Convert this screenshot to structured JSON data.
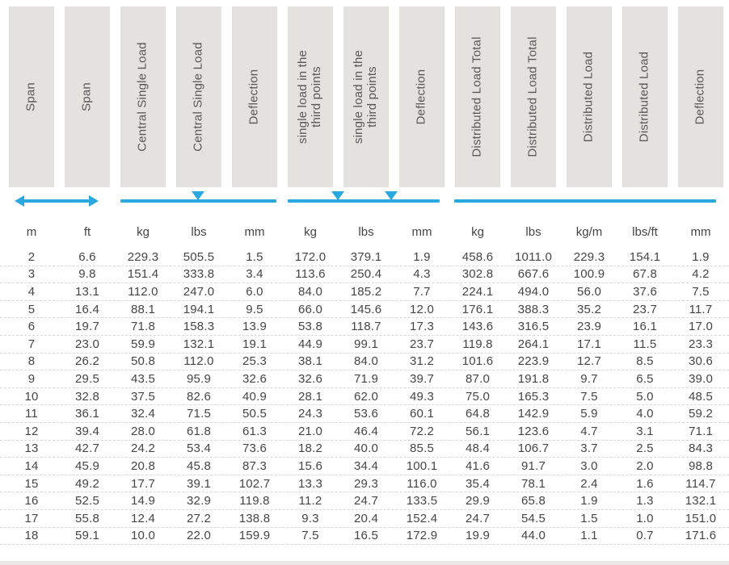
{
  "colors": {
    "header_box_bg": "#e3e2df",
    "header_text": "#58585a",
    "data_text": "#454547",
    "accent_blue": "#2aa9e0",
    "row_divider": "#d8d7d4"
  },
  "annotations": {
    "span_arrow": "double-headed horizontal arrow under Span columns",
    "central_load_line": "line with one center triangle under Central Single Load group",
    "third_points_line": "line with two triangles under third-points load group",
    "distributed_line": "plain line under Distributed Load group"
  },
  "table": {
    "columns": [
      {
        "id": "span-m",
        "label": "Span"
      },
      {
        "id": "span-ft",
        "label": "Span"
      },
      {
        "id": "central-single-load-kg",
        "label": "Central Single Load"
      },
      {
        "id": "central-single-load-lbs",
        "label": "Central Single Load"
      },
      {
        "id": "central-deflection",
        "label": "Deflection"
      },
      {
        "id": "third-points-load-kg",
        "label": "single load in the\nthird points"
      },
      {
        "id": "third-points-load-lbs",
        "label": "single load in the\nthird points"
      },
      {
        "id": "third-points-deflection",
        "label": "Deflection"
      },
      {
        "id": "distributed-load-total-kg",
        "label": "Distributed Load Total"
      },
      {
        "id": "distributed-load-total-lbs",
        "label": "Distributed Load Total"
      },
      {
        "id": "distributed-load-kg-m",
        "label": "Distributed Load"
      },
      {
        "id": "distributed-load-lbs-ft",
        "label": "Distributed Load"
      },
      {
        "id": "distributed-deflection",
        "label": "Deflection"
      }
    ],
    "units": [
      "m",
      "ft",
      "kg",
      "lbs",
      "mm",
      "kg",
      "lbs",
      "mm",
      "kg",
      "lbs",
      "kg/m",
      "lbs/ft",
      "mm"
    ],
    "rows": [
      [
        "2",
        "6.6",
        "229.3",
        "505.5",
        "1.5",
        "172.0",
        "379.1",
        "1.9",
        "458.6",
        "1011.0",
        "229.3",
        "154.1",
        "1.9"
      ],
      [
        "3",
        "9.8",
        "151.4",
        "333.8",
        "3.4",
        "113.6",
        "250.4",
        "4.3",
        "302.8",
        "667.6",
        "100.9",
        "67.8",
        "4.2"
      ],
      [
        "4",
        "13.1",
        "112.0",
        "247.0",
        "6.0",
        "84.0",
        "185.2",
        "7.7",
        "224.1",
        "494.0",
        "56.0",
        "37.6",
        "7.5"
      ],
      [
        "5",
        "16.4",
        "88.1",
        "194.1",
        "9.5",
        "66.0",
        "145.6",
        "12.0",
        "176.1",
        "388.3",
        "35.2",
        "23.7",
        "11.7"
      ],
      [
        "6",
        "19.7",
        "71.8",
        "158.3",
        "13.9",
        "53.8",
        "118.7",
        "17.3",
        "143.6",
        "316.5",
        "23.9",
        "16.1",
        "17.0"
      ],
      [
        "7",
        "23.0",
        "59.9",
        "132.1",
        "19.1",
        "44.9",
        "99.1",
        "23.7",
        "119.8",
        "264.1",
        "17.1",
        "11.5",
        "23.3"
      ],
      [
        "8",
        "26.2",
        "50.8",
        "112.0",
        "25.3",
        "38.1",
        "84.0",
        "31.2",
        "101.6",
        "223.9",
        "12.7",
        "8.5",
        "30.6"
      ],
      [
        "9",
        "29.5",
        "43.5",
        "95.9",
        "32.6",
        "32.6",
        "71.9",
        "39.7",
        "87.0",
        "191.8",
        "9.7",
        "6.5",
        "39.0"
      ],
      [
        "10",
        "32.8",
        "37.5",
        "82.6",
        "40.9",
        "28.1",
        "62.0",
        "49.3",
        "75.0",
        "165.3",
        "7.5",
        "5.0",
        "48.5"
      ],
      [
        "11",
        "36.1",
        "32.4",
        "71.5",
        "50.5",
        "24.3",
        "53.6",
        "60.1",
        "64.8",
        "142.9",
        "5.9",
        "4.0",
        "59.2"
      ],
      [
        "12",
        "39.4",
        "28.0",
        "61.8",
        "61.3",
        "21.0",
        "46.4",
        "72.2",
        "56.1",
        "123.6",
        "4.7",
        "3.1",
        "71.1"
      ],
      [
        "13",
        "42.7",
        "24.2",
        "53.4",
        "73.6",
        "18.2",
        "40.0",
        "85.5",
        "48.4",
        "106.7",
        "3.7",
        "2.5",
        "84.3"
      ],
      [
        "14",
        "45.9",
        "20.8",
        "45.8",
        "87.3",
        "15.6",
        "34.4",
        "100.1",
        "41.6",
        "91.7",
        "3.0",
        "2.0",
        "98.8"
      ],
      [
        "15",
        "49.2",
        "17.7",
        "39.1",
        "102.7",
        "13.3",
        "29.3",
        "116.0",
        "35.4",
        "78.1",
        "2.4",
        "1.6",
        "114.7"
      ],
      [
        "16",
        "52.5",
        "14.9",
        "32.9",
        "119.8",
        "11.2",
        "24.7",
        "133.5",
        "29.9",
        "65.8",
        "1.9",
        "1.3",
        "132.1"
      ],
      [
        "17",
        "55.8",
        "12.4",
        "27.2",
        "138.8",
        "9.3",
        "20.4",
        "152.4",
        "24.7",
        "54.5",
        "1.5",
        "1.0",
        "151.0"
      ],
      [
        "18",
        "59.1",
        "10.0",
        "22.0",
        "159.9",
        "7.5",
        "16.5",
        "172.9",
        "19.9",
        "44.0",
        "1.1",
        "0.7",
        "171.6"
      ]
    ]
  }
}
